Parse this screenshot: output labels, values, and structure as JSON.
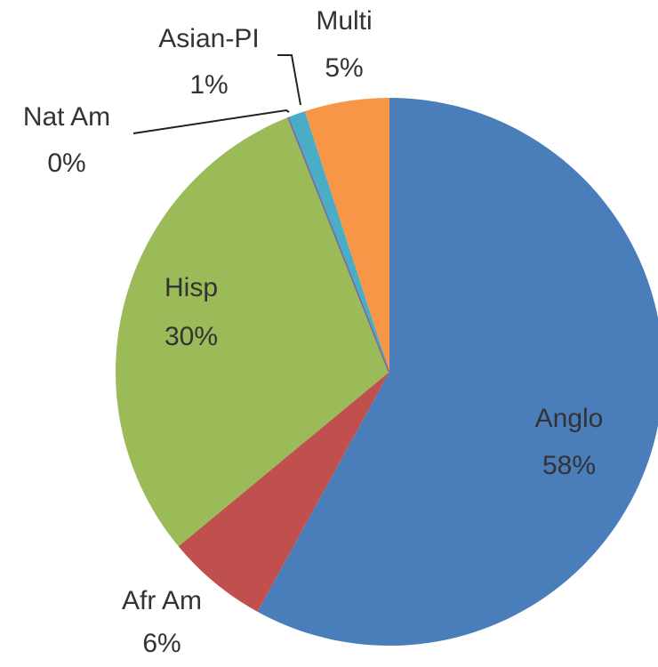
{
  "chart_data": {
    "type": "pie",
    "categories": [
      "Anglo",
      "Afr Am",
      "Hisp",
      "Nat Am",
      "Asian-PI",
      "Multi"
    ],
    "values": [
      58,
      6,
      30,
      0,
      1,
      5
    ],
    "value_labels": [
      "58%",
      "6%",
      "30%",
      "0%",
      "1%",
      "5%"
    ],
    "colors": [
      "#4a7ebb",
      "#c0504d",
      "#9bbb59",
      "#8064a2",
      "#4bacc6",
      "#f79646"
    ]
  }
}
